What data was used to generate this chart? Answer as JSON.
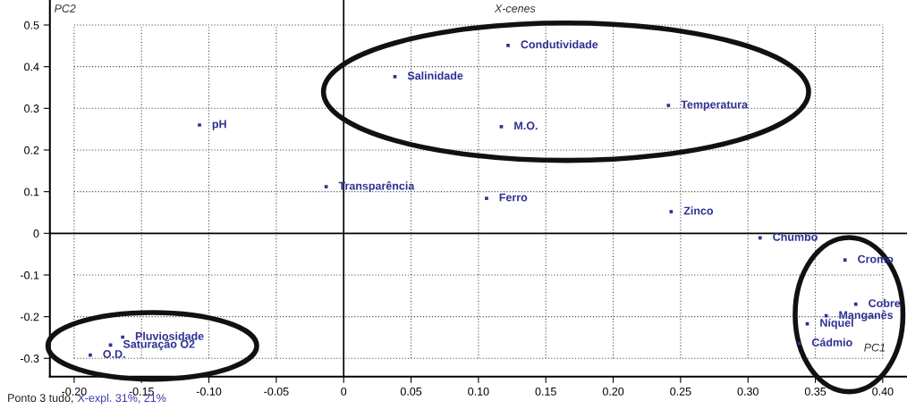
{
  "chart_data": {
    "type": "scatter",
    "title": "X-cenes",
    "xlabel": "PC1",
    "ylabel": "PC2",
    "xlim": [
      -0.218,
      0.418
    ],
    "ylim": [
      -0.344,
      0.56
    ],
    "xticks": [
      {
        "value": -0.2,
        "label": "-0.20"
      },
      {
        "value": -0.15,
        "label": "-0.15"
      },
      {
        "value": -0.1,
        "label": "-0.10"
      },
      {
        "value": -0.05,
        "label": "-0.05"
      },
      0,
      {
        "value": 0.05,
        "label": "0.05"
      },
      {
        "value": 0.1,
        "label": "0.10"
      },
      {
        "value": 0.15,
        "label": "0.15"
      },
      {
        "value": 0.2,
        "label": "0.20"
      },
      {
        "value": 0.25,
        "label": "0.25"
      },
      {
        "value": 0.3,
        "label": "0.30"
      },
      {
        "value": 0.35,
        "label": "0.35"
      },
      {
        "value": 0.4,
        "label": "0.40"
      }
    ],
    "yticks": [
      -0.3,
      -0.2,
      -0.1,
      0,
      0.1,
      0.2,
      0.3,
      0.4,
      0.5
    ],
    "grid": true,
    "series": [
      {
        "color": "#2e3192",
        "x": [
          0.122,
          0.038,
          0.241,
          0.117,
          -0.107,
          -0.013,
          0.106,
          0.243,
          0.309,
          0.372,
          0.38,
          0.358,
          0.344,
          0.338,
          -0.164,
          -0.173,
          -0.188
        ],
        "values": [
          0.451,
          0.376,
          0.307,
          0.256,
          0.26,
          0.112,
          0.084,
          0.052,
          -0.011,
          -0.064,
          -0.17,
          -0.198,
          -0.217,
          -0.264,
          -0.249,
          -0.268,
          -0.292
        ]
      }
    ],
    "annotations": [
      {
        "text": "Condutividade",
        "x": 0.122,
        "y": 0.451
      },
      {
        "text": "Salinidade",
        "x": 0.038,
        "y": 0.376
      },
      {
        "text": "Temperatura",
        "x": 0.241,
        "y": 0.307
      },
      {
        "text": "M.O.",
        "x": 0.117,
        "y": 0.256
      },
      {
        "text": "pH",
        "x": -0.107,
        "y": 0.26
      },
      {
        "text": "Transparência",
        "x": -0.013,
        "y": 0.112
      },
      {
        "text": "Ferro",
        "x": 0.106,
        "y": 0.084
      },
      {
        "text": "Zinco",
        "x": 0.243,
        "y": 0.052
      },
      {
        "text": "Chumbo",
        "x": 0.309,
        "y": -0.011
      },
      {
        "text": "Cromo",
        "x": 0.372,
        "y": -0.064
      },
      {
        "text": "Cobre",
        "x": 0.38,
        "y": -0.17
      },
      {
        "text": "Manganês",
        "x": 0.358,
        "y": -0.198
      },
      {
        "text": "Níquel",
        "x": 0.344,
        "y": -0.217
      },
      {
        "text": "Cádmio",
        "x": 0.338,
        "y": -0.264
      },
      {
        "text": "Pluviosidade",
        "x": -0.164,
        "y": -0.249
      },
      {
        "text": "Saturação O2",
        "x": -0.173,
        "y": -0.268
      },
      {
        "text": "O.D.",
        "x": -0.188,
        "y": -0.292
      },
      "Ponto 3 tudo,",
      "X-expl. 31%, 21%"
    ]
  }
}
